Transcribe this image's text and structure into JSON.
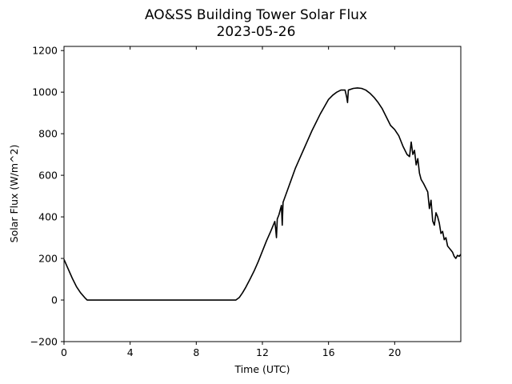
{
  "chart_data": {
    "type": "line",
    "title": "AO&SS Building Tower Solar Flux",
    "subtitle": "2023-05-26",
    "xlabel": "Time (UTC)",
    "ylabel": "Solar Flux (W/m^2)",
    "xlim": [
      0,
      24
    ],
    "ylim": [
      -200,
      1220
    ],
    "xticks": [
      0,
      4,
      8,
      12,
      16,
      20
    ],
    "xtick_labels": [
      "0",
      "4",
      "8",
      "12",
      "16",
      "20"
    ],
    "yticks": [
      -200,
      0,
      200,
      400,
      600,
      800,
      1000,
      1200
    ],
    "ytick_labels": [
      "−200",
      "0",
      "200",
      "400",
      "600",
      "800",
      "1000",
      "1200"
    ],
    "grid": false,
    "line_color": "#000000",
    "series": [
      {
        "x": [
          0,
          0.25,
          0.5,
          0.75,
          1.0,
          1.25,
          1.4,
          2,
          4,
          6,
          8,
          10,
          10.4,
          10.6,
          10.8,
          11.0,
          11.25,
          11.5,
          11.75,
          12.0,
          12.25,
          12.5,
          12.75,
          12.8,
          12.85,
          12.9,
          13.0,
          13.15,
          13.2,
          13.25,
          13.5,
          13.75,
          14.0,
          14.25,
          14.5,
          14.75,
          15.0,
          15.25,
          15.5,
          15.75,
          16.0,
          16.25,
          16.5,
          16.75,
          17.0,
          17.1,
          17.15,
          17.2,
          17.5,
          17.75,
          18.0,
          18.25,
          18.5,
          18.75,
          19.0,
          19.25,
          19.5,
          19.75,
          20.0,
          20.25,
          20.5,
          20.75,
          20.9,
          21.0,
          21.1,
          21.2,
          21.3,
          21.4,
          21.5,
          21.6,
          21.75,
          22.0,
          22.1,
          22.2,
          22.3,
          22.4,
          22.5,
          22.6,
          22.7,
          22.8,
          22.9,
          23.0,
          23.1,
          23.2,
          23.3,
          23.4,
          23.5,
          23.6,
          23.7,
          23.8,
          23.9,
          24.0
        ],
        "y": [
          195,
          150,
          105,
          65,
          35,
          12,
          0,
          0,
          0,
          0,
          0,
          0,
          0,
          12,
          35,
          62,
          100,
          140,
          185,
          235,
          285,
          330,
          378,
          345,
          300,
          390,
          410,
          455,
          360,
          470,
          525,
          580,
          635,
          680,
          725,
          770,
          815,
          855,
          895,
          930,
          965,
          985,
          1000,
          1010,
          1010,
          975,
          950,
          1010,
          1018,
          1020,
          1018,
          1010,
          995,
          975,
          950,
          920,
          880,
          840,
          820,
          790,
          740,
          700,
          690,
          760,
          700,
          720,
          650,
          680,
          610,
          580,
          560,
          520,
          440,
          480,
          380,
          360,
          420,
          400,
          370,
          320,
          330,
          290,
          300,
          260,
          250,
          240,
          230,
          210,
          200,
          215,
          210,
          220
        ]
      }
    ]
  }
}
